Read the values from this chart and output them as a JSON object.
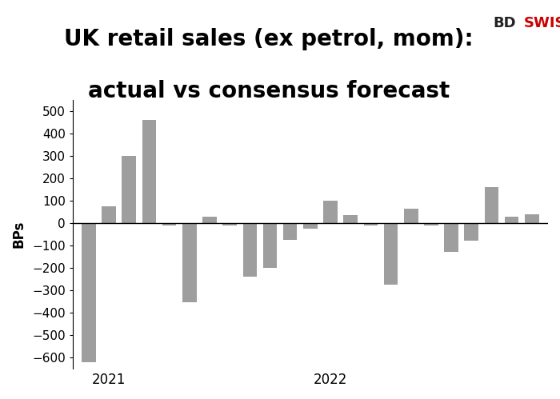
{
  "title_line1": "UK retail sales (ex petrol, mom):",
  "title_line2": "actual vs consensus forecast",
  "ylabel": "BPs",
  "bar_color": "#9E9E9E",
  "background_color": "#FFFFFF",
  "values": [
    -620,
    75,
    300,
    460,
    -10,
    -355,
    30,
    -10,
    -240,
    -200,
    -75,
    -25,
    100,
    35,
    -10,
    -275,
    65,
    -10,
    -130,
    -80,
    160,
    30,
    40
  ],
  "xlabels_pos": [
    0,
    11
  ],
  "xlabels": [
    "2021",
    "2022"
  ],
  "ylim": [
    -650,
    550
  ],
  "yticks": [
    -600,
    -500,
    -400,
    -300,
    -200,
    -100,
    0,
    100,
    200,
    300,
    400,
    500
  ],
  "title_fontsize": 20,
  "ylabel_fontsize": 12,
  "axis_fontsize": 11,
  "bdswiss_text": "BDSWISS",
  "logo_color_bd": "#333333",
  "logo_color_swiss": "#FF0000"
}
